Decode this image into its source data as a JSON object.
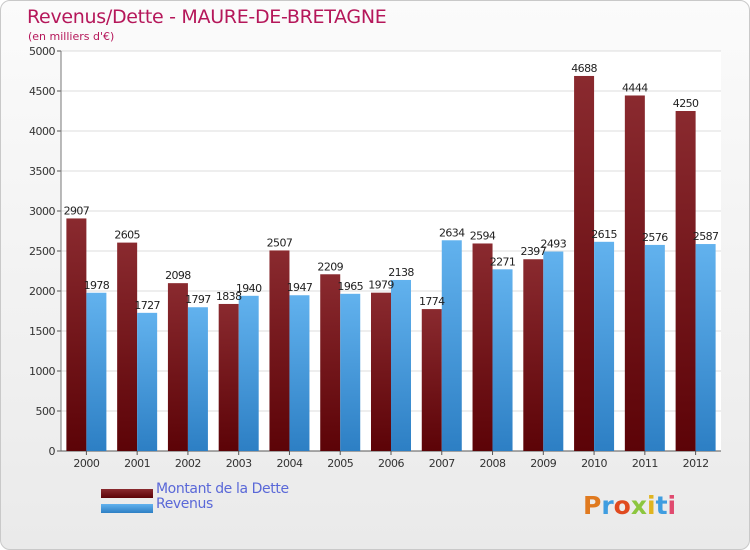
{
  "title": "Revenus/Dette - MAURE-DE-BRETAGNE",
  "subtitle": "(en milliers d'€)",
  "colors": {
    "dette": "#6e0b10",
    "dette_light": "#8e2e33",
    "revenus": "#4a9fe0",
    "revenus_light": "#6fb8ee",
    "title": "#b5175a",
    "legend_text": "#5a68d8"
  },
  "logo": {
    "text": "Proxiti"
  },
  "chart_data": {
    "type": "bar",
    "title": "Revenus/Dette - MAURE-DE-BRETAGNE",
    "subtitle": "(en milliers d'€)",
    "ylim": [
      0,
      5000
    ],
    "yticks": [
      0,
      500,
      1000,
      1500,
      2000,
      2500,
      3000,
      3500,
      4000,
      4500,
      5000
    ],
    "grid": true,
    "legend_position": "bottom-left",
    "categories": [
      "2000",
      "2001",
      "2002",
      "2003",
      "2004",
      "2005",
      "2006",
      "2007",
      "2008",
      "2009",
      "2010",
      "2011",
      "2012"
    ],
    "series": [
      {
        "name": "Montant de la Dette",
        "values": [
          2907,
          2605,
          2098,
          1838,
          2507,
          2209,
          1979,
          1774,
          2594,
          2397,
          4688,
          4444,
          4250
        ]
      },
      {
        "name": "Revenus",
        "values": [
          1978,
          1727,
          1797,
          1940,
          1947,
          1965,
          2138,
          2634,
          2271,
          2493,
          2615,
          2576,
          2587
        ]
      }
    ],
    "data_labels": [
      [
        "2907",
        "2605",
        "2098",
        "1838",
        "2507",
        "2209",
        "1979",
        "1774",
        "2594",
        "2397",
        "4688",
        "4444",
        "4250"
      ],
      [
        "1978",
        "1727",
        "1797",
        "1940",
        "1947",
        "1965",
        "2138",
        "2634",
        "2271",
        "2493",
        "2615",
        "2576",
        "2587"
      ]
    ]
  }
}
